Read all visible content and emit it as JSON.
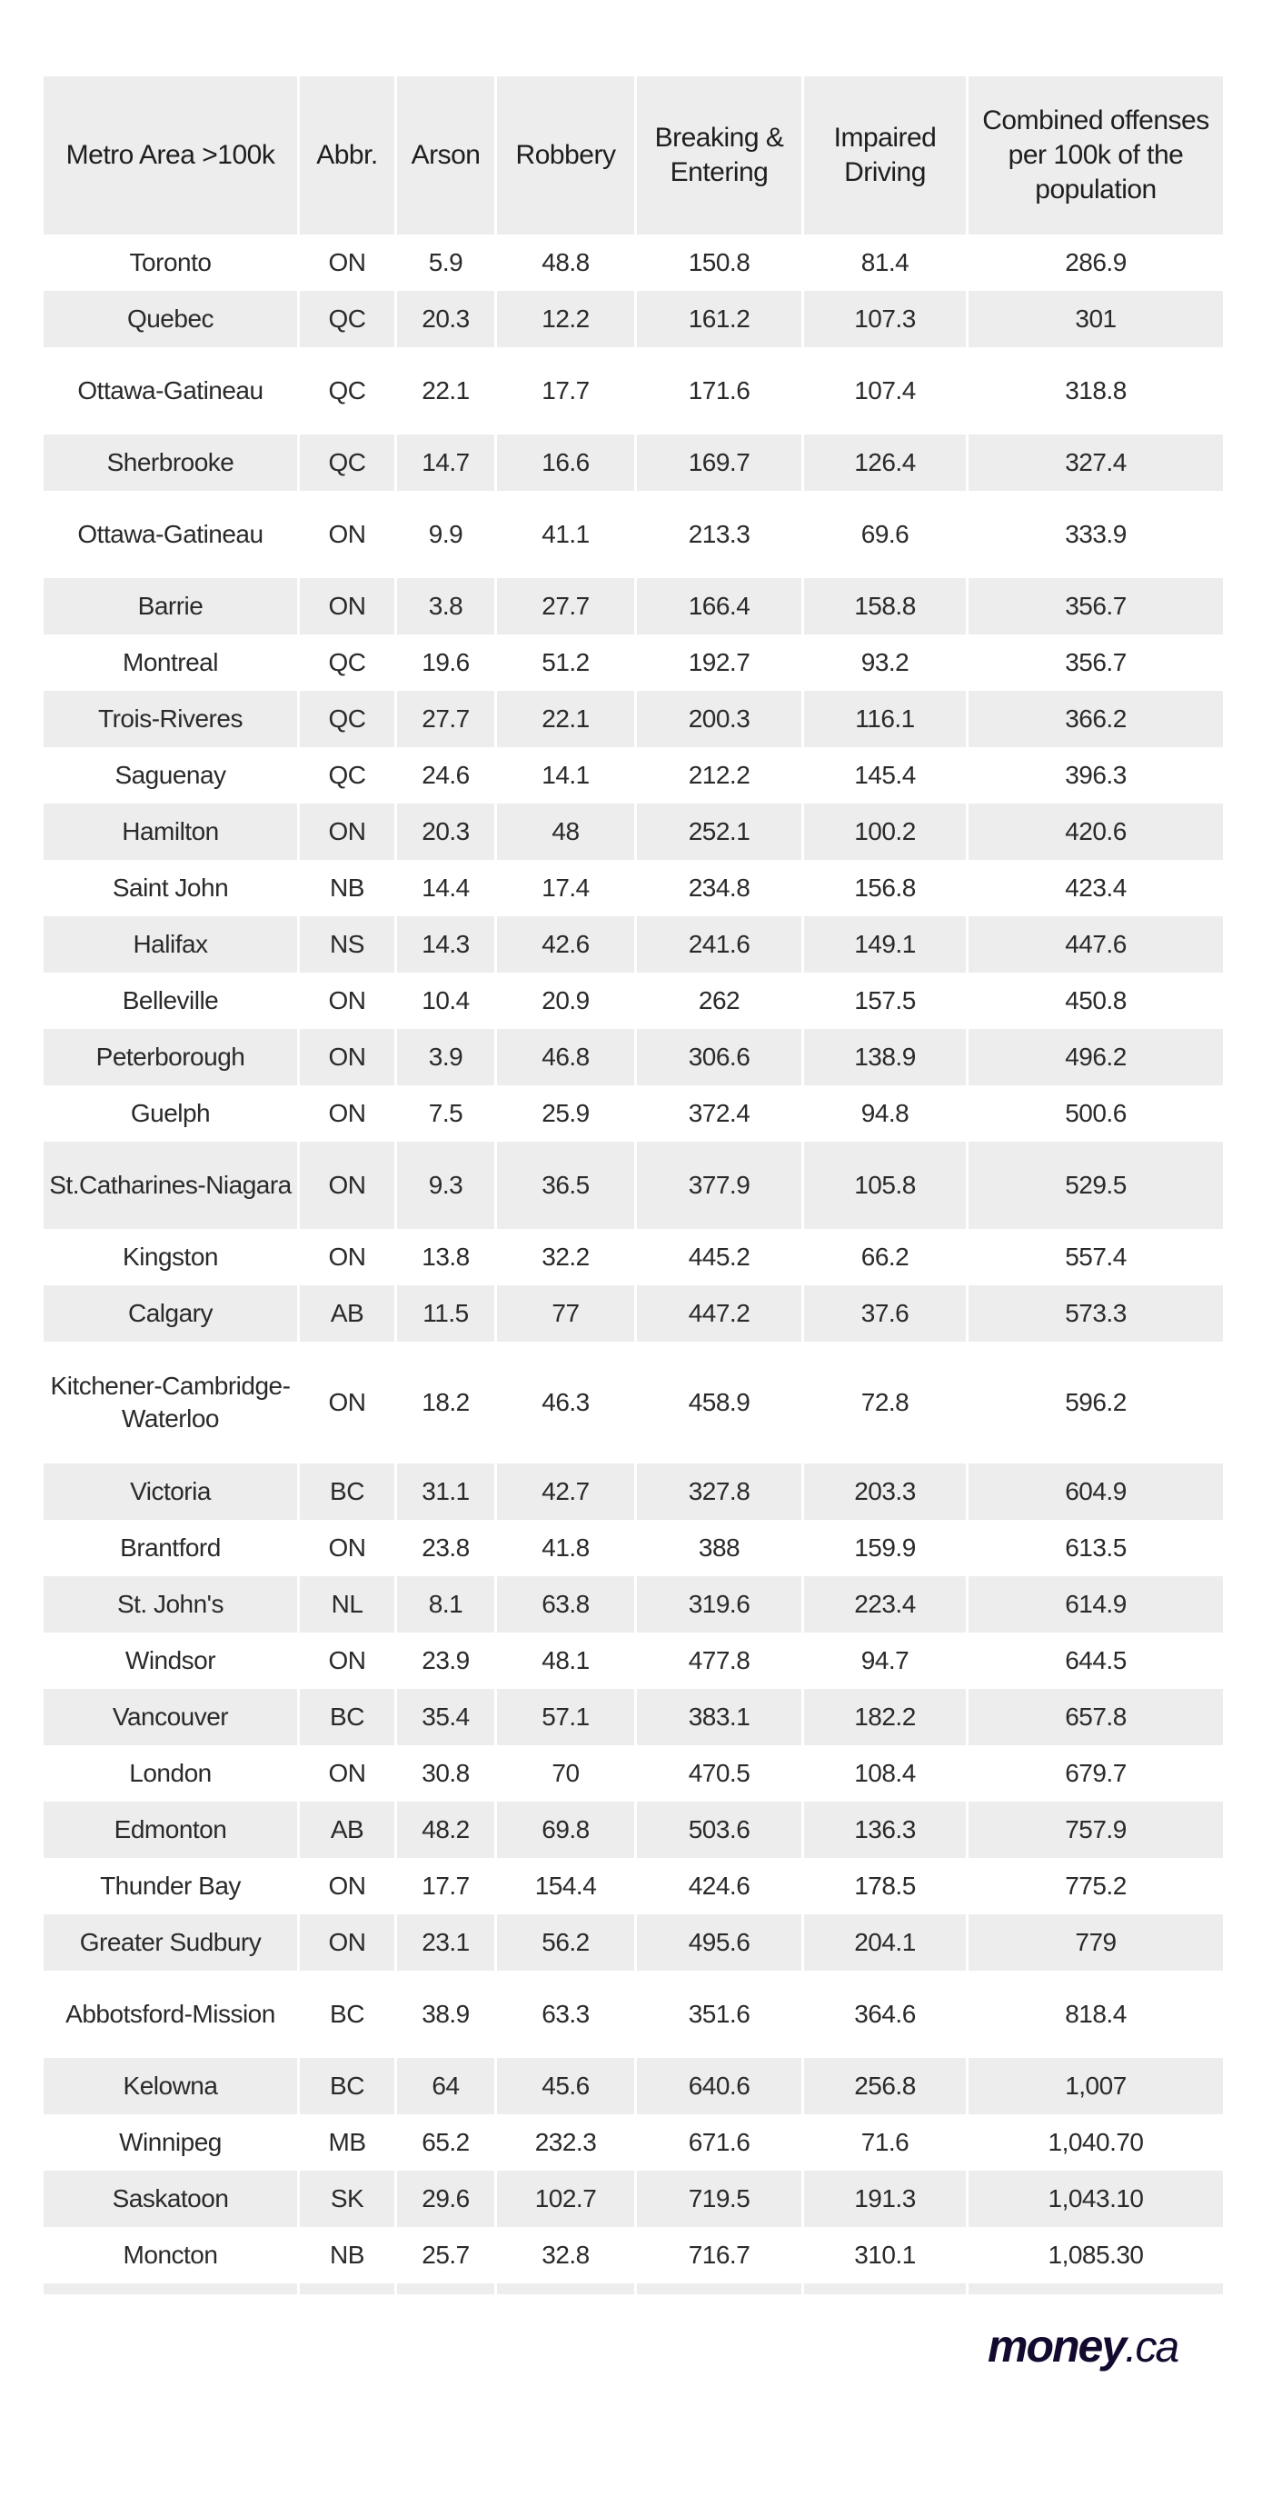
{
  "table": {
    "headers": [
      "Metro Area >100k",
      "Abbr.",
      "Arson",
      "Robbery",
      "Breaking & Entering",
      "Impaired Driving",
      "Combined offenses per 100k of the population"
    ],
    "rows": [
      [
        "Toronto",
        "ON",
        "5.9",
        "48.8",
        "150.8",
        "81.4",
        "286.9"
      ],
      [
        "Quebec",
        "QC",
        "20.3",
        "12.2",
        "161.2",
        "107.3",
        "301"
      ],
      [
        "Ottawa-Gatineau",
        "QC",
        "22.1",
        "17.7",
        "171.6",
        "107.4",
        "318.8"
      ],
      [
        "Sherbrooke",
        "QC",
        "14.7",
        "16.6",
        "169.7",
        "126.4",
        "327.4"
      ],
      [
        "Ottawa-Gatineau",
        "ON",
        "9.9",
        "41.1",
        "213.3",
        "69.6",
        "333.9"
      ],
      [
        "Barrie",
        "ON",
        "3.8",
        "27.7",
        "166.4",
        "158.8",
        "356.7"
      ],
      [
        "Montreal",
        "QC",
        "19.6",
        "51.2",
        "192.7",
        "93.2",
        "356.7"
      ],
      [
        "Trois-Riveres",
        "QC",
        "27.7",
        "22.1",
        "200.3",
        "116.1",
        "366.2"
      ],
      [
        "Saguenay",
        "QC",
        "24.6",
        "14.1",
        "212.2",
        "145.4",
        "396.3"
      ],
      [
        "Hamilton",
        "ON",
        "20.3",
        "48",
        "252.1",
        "100.2",
        "420.6"
      ],
      [
        "Saint John",
        "NB",
        "14.4",
        "17.4",
        "234.8",
        "156.8",
        "423.4"
      ],
      [
        "Halifax",
        "NS",
        "14.3",
        "42.6",
        "241.6",
        "149.1",
        "447.6"
      ],
      [
        "Belleville",
        "ON",
        "10.4",
        "20.9",
        "262",
        "157.5",
        "450.8"
      ],
      [
        "Peterborough",
        "ON",
        "3.9",
        "46.8",
        "306.6",
        "138.9",
        "496.2"
      ],
      [
        "Guelph",
        "ON",
        "7.5",
        "25.9",
        "372.4",
        "94.8",
        "500.6"
      ],
      [
        "St.Catharines-Niagara",
        "ON",
        "9.3",
        "36.5",
        "377.9",
        "105.8",
        "529.5"
      ],
      [
        "Kingston",
        "ON",
        "13.8",
        "32.2",
        "445.2",
        "66.2",
        "557.4"
      ],
      [
        "Calgary",
        "AB",
        "11.5",
        "77",
        "447.2",
        "37.6",
        "573.3"
      ],
      [
        "Kitchener-Cambridge-Waterloo",
        "ON",
        "18.2",
        "46.3",
        "458.9",
        "72.8",
        "596.2"
      ],
      [
        "Victoria",
        "BC",
        "31.1",
        "42.7",
        "327.8",
        "203.3",
        "604.9"
      ],
      [
        "Brantford",
        "ON",
        "23.8",
        "41.8",
        "388",
        "159.9",
        "613.5"
      ],
      [
        "St. John's",
        "NL",
        "8.1",
        "63.8",
        "319.6",
        "223.4",
        "614.9"
      ],
      [
        "Windsor",
        "ON",
        "23.9",
        "48.1",
        "477.8",
        "94.7",
        "644.5"
      ],
      [
        "Vancouver",
        "BC",
        "35.4",
        "57.1",
        "383.1",
        "182.2",
        "657.8"
      ],
      [
        "London",
        "ON",
        "30.8",
        "70",
        "470.5",
        "108.4",
        "679.7"
      ],
      [
        "Edmonton",
        "AB",
        "48.2",
        "69.8",
        "503.6",
        "136.3",
        "757.9"
      ],
      [
        "Thunder Bay",
        "ON",
        "17.7",
        "154.4",
        "424.6",
        "178.5",
        "775.2"
      ],
      [
        "Greater Sudbury",
        "ON",
        "23.1",
        "56.2",
        "495.6",
        "204.1",
        "779"
      ],
      [
        "Abbotsford-Mission",
        "BC",
        "38.9",
        "63.3",
        "351.6",
        "364.6",
        "818.4"
      ],
      [
        "Kelowna",
        "BC",
        "64",
        "45.6",
        "640.6",
        "256.8",
        "1,007"
      ],
      [
        "Winnipeg",
        "MB",
        "65.2",
        "232.3",
        "671.6",
        "71.6",
        "1,040.70"
      ],
      [
        "Saskatoon",
        "SK",
        "29.6",
        "102.7",
        "719.5",
        "191.3",
        "1,043.10"
      ],
      [
        "Moncton",
        "NB",
        "25.7",
        "32.8",
        "716.7",
        "310.1",
        "1,085.30"
      ]
    ]
  },
  "logo": {
    "bold": "money",
    "light": ".ca"
  },
  "colors": {
    "header_bg": "#ededed",
    "stripe_bg": "#ededed",
    "text": "#262626",
    "logo": "#14092e"
  }
}
